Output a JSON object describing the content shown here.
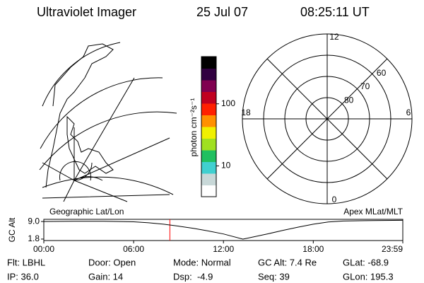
{
  "header": {
    "title": "Ultraviolet Imager",
    "date": "25 Jul 07",
    "time": "08:25:11 UT"
  },
  "map": {
    "label": "Geographic Lat/Lon"
  },
  "colorbar": {
    "label": "photon cm⁻²s⁻¹",
    "log_scale": true,
    "lim": [
      3.2,
      575
    ],
    "ticks": [
      10,
      100
    ],
    "colors": [
      "#ffffff",
      "#c8d8d8",
      "#40d0d0",
      "#20c060",
      "#a0e020",
      "#f0f000",
      "#ff9000",
      "#ff2000",
      "#c00020",
      "#800050",
      "#300040",
      "#000000"
    ]
  },
  "polar": {
    "label": "Apex MLat/MLT",
    "lat_circles": [
      60,
      70,
      80
    ],
    "outer_lat": 50,
    "hours": [
      12,
      18,
      6,
      0
    ]
  },
  "chart_data": {
    "type": "line",
    "ylabel": "GC Alt",
    "x": [
      0,
      2,
      4,
      6,
      7,
      8,
      9,
      10,
      11,
      12,
      13.3,
      14,
      15,
      16,
      17,
      18,
      19,
      20,
      22,
      23.98
    ],
    "values": [
      9.0,
      9.1,
      9.1,
      8.9,
      8.5,
      7.9,
      7.1,
      6.2,
      5.1,
      3.9,
      1.8,
      2.7,
      4.0,
      5.4,
      6.7,
      7.9,
      8.8,
      9.2,
      9.4,
      9.5
    ],
    "color": "#000000",
    "xlim": [
      0,
      23.98
    ],
    "xticks": [
      {
        "value": 0,
        "label": "00:00"
      },
      {
        "value": 6,
        "label": "06:00"
      },
      {
        "value": 12,
        "label": "12:00"
      },
      {
        "value": 18,
        "label": "18:00"
      },
      {
        "value": 23.98,
        "label": "23:59"
      }
    ],
    "ylim": [
      1.2,
      9.9
    ],
    "yticks": [
      {
        "value": 9,
        "label": "9.0"
      },
      1.8
    ],
    "marker": {
      "x": 8.42,
      "color": "#ff0000"
    }
  },
  "footer": {
    "rows": [
      [
        "Flt: LBHL",
        "Door: Open",
        "Mode: Normal",
        "GC Alt: 7.4 Re",
        "GLat: -68.9"
      ],
      [
        "IP: 36.0",
        "Gain: 14",
        "Dsp:  -4.9",
        "Seq: 39",
        "GLon: 195.3"
      ]
    ]
  }
}
